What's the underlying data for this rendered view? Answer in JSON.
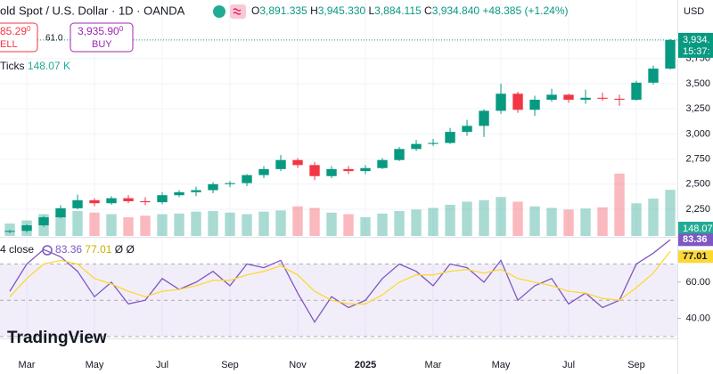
{
  "header": {
    "symbol": "old Spot / U.S. Dollar · 1D · OANDA",
    "open_label": "O",
    "open": "3,891.335",
    "high_label": "H",
    "high": "3,945.330",
    "low_label": "L",
    "low": "3,884.115",
    "close_label": "C",
    "close": "3,934.840",
    "change": "+48.385 (+1.24%)"
  },
  "trade": {
    "sell_price": "85.29",
    "sell_price_sup": "0",
    "sell": "ELL",
    "spread": "61.0",
    "buy_price": "3,935.90",
    "buy_price_sup": "0",
    "buy": "BUY"
  },
  "logo": "TradingView",
  "chart_data": {
    "type": "candlestick",
    "currency": "USD",
    "colors": {
      "up": "#089981",
      "down": "#f23645"
    },
    "x": [
      1.5,
      2.0,
      2.5,
      3.0,
      3.5,
      4.0,
      4.5,
      5.0,
      5.5,
      6.0,
      6.5,
      7.0,
      7.5,
      8.0,
      8.5,
      9.0,
      9.5,
      10.0,
      10.5,
      11.0,
      11.5,
      12.0,
      12.5,
      13.0,
      13.5,
      14.0,
      14.5,
      15.0,
      15.5,
      16.0,
      16.5,
      17.0,
      17.5,
      18.0,
      18.5,
      19.0,
      19.5,
      20.0,
      20.5,
      21.0
    ],
    "open": [
      2025,
      2035,
      2090,
      2170,
      2260,
      2340,
      2310,
      2360,
      2330,
      2320,
      2390,
      2420,
      2440,
      2500,
      2510,
      2590,
      2650,
      2740,
      2690,
      2580,
      2650,
      2630,
      2660,
      2740,
      2850,
      2900,
      2910,
      3020,
      3080,
      3230,
      3400,
      3240,
      3340,
      3390,
      3340,
      3360,
      3350,
      3340,
      3510,
      3650
    ],
    "high": [
      2045,
      2100,
      2185,
      2290,
      2395,
      2360,
      2380,
      2390,
      2370,
      2420,
      2440,
      2475,
      2520,
      2530,
      2600,
      2680,
      2790,
      2760,
      2720,
      2680,
      2680,
      2690,
      2760,
      2870,
      2940,
      2950,
      3060,
      3140,
      3245,
      3500,
      3420,
      3380,
      3450,
      3400,
      3440,
      3410,
      3390,
      3530,
      3680,
      3945
    ],
    "low": [
      2010,
      2020,
      2075,
      2160,
      2250,
      2280,
      2295,
      2310,
      2290,
      2300,
      2370,
      2380,
      2410,
      2470,
      2480,
      2560,
      2630,
      2660,
      2540,
      2560,
      2600,
      2600,
      2650,
      2730,
      2830,
      2880,
      2900,
      2980,
      2970,
      3200,
      3210,
      3180,
      3320,
      3310,
      3300,
      3330,
      3280,
      3330,
      3490,
      3640
    ],
    "close": [
      2035,
      2090,
      2170,
      2260,
      2340,
      2310,
      2360,
      2330,
      2320,
      2390,
      2420,
      2440,
      2500,
      2510,
      2590,
      2650,
      2740,
      2690,
      2580,
      2650,
      2630,
      2660,
      2740,
      2850,
      2900,
      2910,
      3020,
      3080,
      3230,
      3400,
      3240,
      3340,
      3390,
      3340,
      3360,
      3350,
      3340,
      3510,
      3650,
      3935
    ],
    "xlim": [
      1.21,
      21.21
    ],
    "xticks": [
      {
        "value": 2,
        "label": "Mar"
      },
      {
        "value": 4,
        "label": "May"
      },
      {
        "value": 6,
        "label": "Jul"
      },
      {
        "value": 8,
        "label": "Sep"
      },
      {
        "value": 10,
        "label": "Nov"
      },
      {
        "value": 12,
        "label": "2025"
      },
      {
        "value": 14,
        "label": "Mar"
      },
      {
        "value": 16,
        "label": "May"
      },
      {
        "value": 18,
        "label": "Jul"
      },
      {
        "value": 20,
        "label": "Sep"
      }
    ],
    "ylim": [
      1984,
      4333
    ],
    "yticks": [
      {
        "value": 2250,
        "label": "2,250"
      },
      {
        "value": 2500,
        "label": "2,500"
      },
      {
        "value": 2750,
        "label": "2,750"
      },
      {
        "value": 3000,
        "label": "3,000"
      },
      {
        "value": 3250,
        "label": "3,250"
      },
      {
        "value": 3500,
        "label": "3,500"
      },
      {
        "value": 3750,
        "label": "3,750"
      }
    ],
    "grid": true,
    "last_price_label": "3,934.",
    "last_time_label": "15:37:",
    "volume": {
      "name": "Ticks",
      "legend_value": "148.07 K",
      "values": [
        40,
        50,
        70,
        65,
        80,
        75,
        70,
        60,
        65,
        70,
        72,
        78,
        80,
        75,
        70,
        78,
        82,
        95,
        90,
        75,
        70,
        60,
        72,
        80,
        85,
        90,
        100,
        110,
        115,
        125,
        110,
        95,
        90,
        85,
        88,
        92,
        200,
        105,
        120,
        148.07
      ]
    },
    "indicator": {
      "type": "line",
      "title": "4 close",
      "legend_extra": "Ø Ø",
      "ylim": [
        29,
        84
      ],
      "yticks": [
        {
          "value": 60,
          "label": "60.00"
        },
        {
          "value": 40,
          "label": "40.00"
        }
      ],
      "levels": [
        70,
        50,
        30
      ],
      "series": [
        {
          "color": "#7e57c2",
          "values": [
            55,
            70,
            78,
            74,
            66,
            52,
            60,
            48,
            50,
            62,
            56,
            60,
            66,
            58,
            70,
            68,
            72,
            54,
            38,
            52,
            46,
            50,
            62,
            70,
            66,
            58,
            70,
            68,
            60,
            72,
            50,
            58,
            62,
            48,
            54,
            46,
            50,
            70,
            76,
            83.36
          ]
        },
        {
          "color": "#fdd835",
          "values": [
            52,
            62,
            70,
            72,
            70,
            62,
            59,
            55,
            52,
            55,
            56,
            58,
            61,
            61,
            64,
            66,
            69,
            64,
            55,
            50,
            48,
            48,
            53,
            60,
            64,
            64,
            66,
            67,
            65,
            67,
            62,
            60,
            58,
            55,
            54,
            51,
            50,
            57,
            65,
            77.01
          ]
        }
      ]
    }
  }
}
